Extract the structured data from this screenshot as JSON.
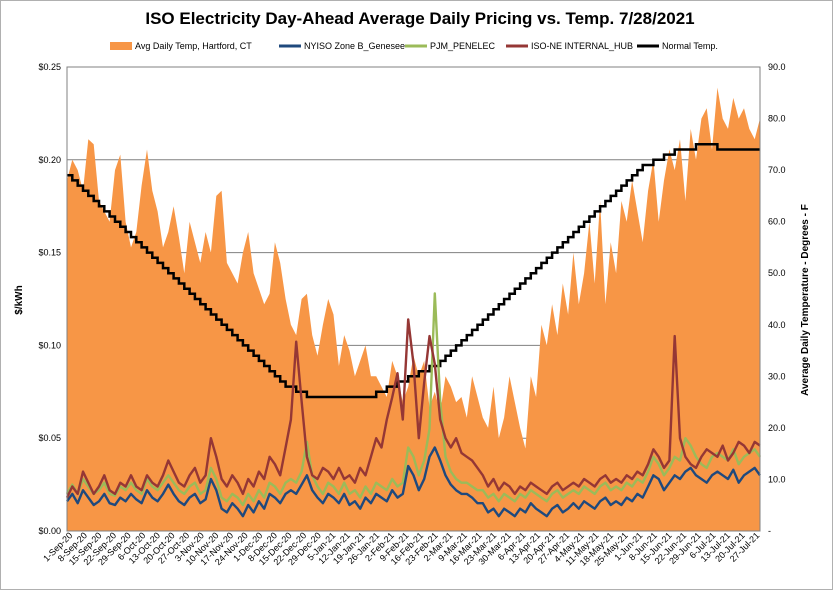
{
  "chart_data": {
    "type": "line",
    "title": "ISO Electricity Day-Ahead Average Daily Pricing vs. Temp. 7/28/2021",
    "ylabel": "$/kWh",
    "y2label": "Average Daily Temperature - Degrees - F",
    "ylim": [
      0,
      0.25
    ],
    "y2lim": [
      0,
      90
    ],
    "y_ticks": [
      "$0.00",
      "$0.05",
      "$0.10",
      "$0.15",
      "$0.20",
      "$0.25"
    ],
    "y2_ticks": [
      "-",
      "10.0",
      "20.0",
      "30.0",
      "40.0",
      "50.0",
      "60.0",
      "70.0",
      "80.0",
      "90.0"
    ],
    "grid": true,
    "legend_position": "top",
    "x_labels": [
      "1-Sep-20",
      "8-Sep-20",
      "15-Sep-20",
      "22-Sep-20",
      "29-Sep-20",
      "6-Oct-20",
      "13-Oct-20",
      "20-Oct-20",
      "27-Oct-20",
      "3-Nov-20",
      "10-Nov-20",
      "17-Nov-20",
      "24-Nov-20",
      "1-Dec-20",
      "8-Dec-20",
      "15-Dec-20",
      "22-Dec-20",
      "29-Dec-20",
      "5-Jan-21",
      "12-Jan-21",
      "19-Jan-21",
      "26-Jan-21",
      "2-Feb-21",
      "9-Feb-21",
      "16-Feb-21",
      "23-Feb-21",
      "2-Mar-21",
      "9-Mar-21",
      "16-Mar-21",
      "23-Mar-21",
      "30-Mar-21",
      "6-Apr-21",
      "13-Apr-21",
      "20-Apr-21",
      "27-Apr-21",
      "4-May-21",
      "11-May-21",
      "18-May-21",
      "25-May-21",
      "1-Jun-21",
      "8-Jun-21",
      "15-Jun-21",
      "22-Jun-21",
      "29-Jun-21",
      "6-Jul-21",
      "13-Jul-21",
      "20-Jul-21",
      "27-Jul-21"
    ],
    "series": [
      {
        "name": "Avg Daily Temp, Hartford, CT",
        "type": "area",
        "axis": "right",
        "color": "#F79646",
        "values": [
          68,
          72,
          70,
          66,
          76,
          75,
          64,
          62,
          60,
          70,
          73,
          60,
          55,
          58,
          67,
          74,
          66,
          62,
          55,
          58,
          63,
          57,
          50,
          60,
          56,
          52,
          58,
          54,
          65,
          66,
          52,
          50,
          48,
          54,
          58,
          50,
          47,
          44,
          46,
          56,
          52,
          45,
          40,
          38,
          45,
          46,
          38,
          34,
          40,
          45,
          42,
          32,
          38,
          35,
          30,
          33,
          36,
          30,
          30,
          28,
          26,
          33,
          30,
          25,
          28,
          34,
          30,
          33,
          24,
          27,
          23,
          30,
          28,
          25,
          26,
          22,
          30,
          26,
          22,
          20,
          28,
          18,
          22,
          30,
          25,
          20,
          16,
          30,
          26,
          40,
          36,
          44,
          38,
          48,
          42,
          54,
          44,
          50,
          60,
          48,
          64,
          44,
          56,
          50,
          64,
          60,
          68,
          62,
          56,
          66,
          72,
          60,
          68,
          74,
          70,
          76,
          64,
          78,
          72,
          80,
          82,
          74,
          86,
          80,
          78,
          84,
          80,
          82,
          78,
          76,
          80
        ]
      },
      {
        "name": "NYISO Zone B_Genesee",
        "type": "line",
        "axis": "left",
        "color": "#1F497D",
        "values": [
          0.016,
          0.02,
          0.015,
          0.022,
          0.018,
          0.014,
          0.016,
          0.02,
          0.015,
          0.014,
          0.018,
          0.016,
          0.02,
          0.017,
          0.015,
          0.022,
          0.018,
          0.016,
          0.02,
          0.025,
          0.02,
          0.016,
          0.014,
          0.018,
          0.02,
          0.015,
          0.017,
          0.028,
          0.022,
          0.012,
          0.01,
          0.015,
          0.012,
          0.008,
          0.014,
          0.01,
          0.016,
          0.012,
          0.02,
          0.018,
          0.015,
          0.02,
          0.022,
          0.02,
          0.025,
          0.03,
          0.022,
          0.018,
          0.015,
          0.02,
          0.018,
          0.015,
          0.02,
          0.014,
          0.016,
          0.012,
          0.018,
          0.015,
          0.02,
          0.018,
          0.016,
          0.022,
          0.018,
          0.02,
          0.035,
          0.03,
          0.022,
          0.028,
          0.04,
          0.045,
          0.038,
          0.03,
          0.025,
          0.022,
          0.02,
          0.02,
          0.018,
          0.015,
          0.015,
          0.01,
          0.012,
          0.008,
          0.012,
          0.01,
          0.008,
          0.012,
          0.01,
          0.015,
          0.012,
          0.01,
          0.008,
          0.012,
          0.014,
          0.01,
          0.012,
          0.015,
          0.012,
          0.016,
          0.014,
          0.012,
          0.016,
          0.018,
          0.014,
          0.016,
          0.014,
          0.018,
          0.016,
          0.02,
          0.018,
          0.024,
          0.03,
          0.028,
          0.022,
          0.026,
          0.03,
          0.028,
          0.032,
          0.034,
          0.03,
          0.028,
          0.026,
          0.03,
          0.032,
          0.03,
          0.028,
          0.033,
          0.026,
          0.03,
          0.032,
          0.034,
          0.03
        ]
      },
      {
        "name": "PJM_PENELEC",
        "type": "line",
        "axis": "left",
        "color": "#9BBB59",
        "values": [
          0.02,
          0.025,
          0.02,
          0.028,
          0.024,
          0.02,
          0.022,
          0.026,
          0.02,
          0.019,
          0.024,
          0.022,
          0.026,
          0.022,
          0.02,
          0.028,
          0.024,
          0.022,
          0.026,
          0.03,
          0.026,
          0.022,
          0.02,
          0.024,
          0.026,
          0.02,
          0.022,
          0.034,
          0.028,
          0.018,
          0.016,
          0.02,
          0.018,
          0.014,
          0.02,
          0.016,
          0.022,
          0.018,
          0.026,
          0.024,
          0.02,
          0.026,
          0.028,
          0.026,
          0.032,
          0.048,
          0.03,
          0.024,
          0.02,
          0.026,
          0.024,
          0.02,
          0.026,
          0.02,
          0.022,
          0.018,
          0.024,
          0.02,
          0.026,
          0.024,
          0.022,
          0.028,
          0.024,
          0.026,
          0.045,
          0.04,
          0.03,
          0.038,
          0.055,
          0.128,
          0.07,
          0.04,
          0.032,
          0.028,
          0.026,
          0.026,
          0.024,
          0.022,
          0.022,
          0.018,
          0.02,
          0.016,
          0.02,
          0.018,
          0.016,
          0.02,
          0.018,
          0.022,
          0.02,
          0.018,
          0.016,
          0.02,
          0.022,
          0.018,
          0.02,
          0.022,
          0.02,
          0.024,
          0.022,
          0.02,
          0.024,
          0.026,
          0.022,
          0.024,
          0.022,
          0.026,
          0.024,
          0.028,
          0.026,
          0.032,
          0.04,
          0.036,
          0.03,
          0.034,
          0.04,
          0.038,
          0.05,
          0.046,
          0.04,
          0.036,
          0.034,
          0.04,
          0.042,
          0.04,
          0.038,
          0.044,
          0.036,
          0.04,
          0.042,
          0.044,
          0.04
        ]
      },
      {
        "name": "ISO-NE INTERNAL_HUB",
        "type": "line",
        "axis": "left",
        "color": "#953735",
        "values": [
          0.018,
          0.024,
          0.02,
          0.032,
          0.026,
          0.02,
          0.024,
          0.03,
          0.022,
          0.02,
          0.026,
          0.024,
          0.03,
          0.024,
          0.022,
          0.03,
          0.026,
          0.024,
          0.03,
          0.038,
          0.032,
          0.026,
          0.024,
          0.03,
          0.034,
          0.026,
          0.03,
          0.05,
          0.04,
          0.028,
          0.024,
          0.03,
          0.026,
          0.02,
          0.028,
          0.024,
          0.032,
          0.028,
          0.04,
          0.036,
          0.03,
          0.045,
          0.06,
          0.102,
          0.07,
          0.04,
          0.03,
          0.028,
          0.034,
          0.032,
          0.028,
          0.034,
          0.028,
          0.03,
          0.026,
          0.034,
          0.03,
          0.04,
          0.05,
          0.045,
          0.06,
          0.072,
          0.085,
          0.06,
          0.114,
          0.09,
          0.05,
          0.08,
          0.105,
          0.09,
          0.06,
          0.05,
          0.045,
          0.05,
          0.042,
          0.04,
          0.038,
          0.034,
          0.03,
          0.024,
          0.028,
          0.022,
          0.026,
          0.024,
          0.02,
          0.024,
          0.022,
          0.026,
          0.024,
          0.022,
          0.02,
          0.024,
          0.026,
          0.022,
          0.024,
          0.026,
          0.024,
          0.028,
          0.026,
          0.024,
          0.028,
          0.03,
          0.026,
          0.028,
          0.026,
          0.03,
          0.028,
          0.032,
          0.03,
          0.036,
          0.044,
          0.04,
          0.034,
          0.038,
          0.105,
          0.05,
          0.04,
          0.036,
          0.034,
          0.04,
          0.044,
          0.042,
          0.04,
          0.046,
          0.038,
          0.042,
          0.048,
          0.046,
          0.042,
          0.048,
          0.046
        ]
      },
      {
        "name": "Normal Temp.",
        "type": "line",
        "axis": "right",
        "color": "#000000",
        "values": [
          69,
          68,
          67,
          66,
          65,
          64,
          63,
          62,
          61,
          60,
          59,
          58,
          57,
          56,
          55,
          54,
          53,
          52,
          51,
          50,
          49,
          48,
          47,
          46,
          45,
          44,
          43,
          42,
          41,
          40,
          39,
          38,
          37,
          36,
          35,
          34,
          33,
          32,
          31,
          30,
          29,
          28,
          28,
          27,
          27,
          26,
          26,
          26,
          26,
          26,
          26,
          26,
          26,
          26,
          26,
          26,
          26,
          26,
          27,
          27,
          28,
          28,
          29,
          29,
          30,
          30,
          31,
          31,
          32,
          32,
          33,
          34,
          35,
          36,
          37,
          38,
          39,
          40,
          41,
          42,
          43,
          44,
          45,
          46,
          47,
          48,
          49,
          50,
          51,
          52,
          53,
          54,
          55,
          56,
          57,
          58,
          59,
          60,
          61,
          62,
          63,
          64,
          65,
          66,
          67,
          68,
          69,
          70,
          71,
          71,
          72,
          72,
          73,
          73,
          74,
          74,
          74,
          74,
          75,
          75,
          75,
          75,
          74,
          74,
          74,
          74,
          74,
          74,
          74,
          74,
          74
        ]
      }
    ]
  }
}
